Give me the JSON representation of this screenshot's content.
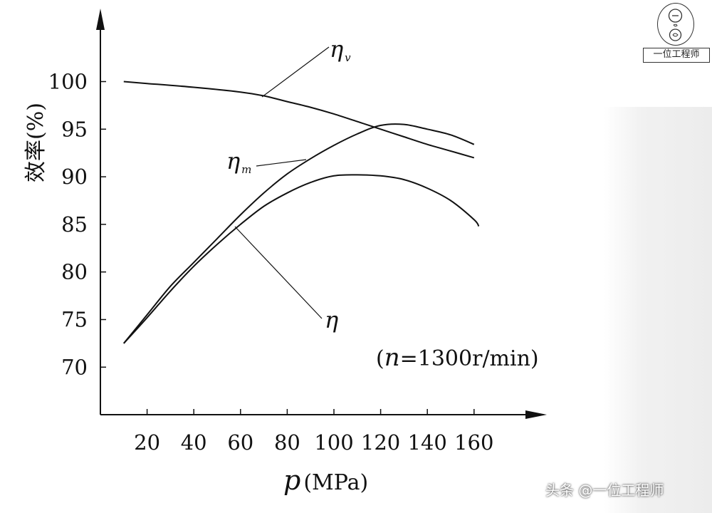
{
  "chart_data": {
    "type": "line",
    "title": "",
    "xlabel_var": "p",
    "xlabel_unit": "(MPa)",
    "ylabel": "效率(%)",
    "xlim": [
      0,
      180
    ],
    "ylim": [
      65,
      115
    ],
    "x_ticks": [
      20,
      40,
      60,
      80,
      100,
      120,
      140,
      160
    ],
    "y_ticks": [
      70,
      75,
      80,
      85,
      90,
      95,
      100
    ],
    "grid": false,
    "annotation": {
      "open": "(",
      "var": "n",
      "rest": "=1300r/min)"
    },
    "series": [
      {
        "name": "η",
        "sub": "v",
        "key": "eta_v",
        "x": [
          10,
          20,
          40,
          60,
          70,
          80,
          90,
          100,
          110,
          120,
          130,
          140,
          150,
          160
        ],
        "y": [
          100,
          99.8,
          99.4,
          98.9,
          98.5,
          97.9,
          97.3,
          96.6,
          95.8,
          95,
          94.2,
          93.4,
          92.7,
          92
        ]
      },
      {
        "name": "η",
        "sub": "m",
        "key": "eta_m",
        "x": [
          10,
          20,
          30,
          40,
          50,
          60,
          70,
          80,
          90,
          100,
          110,
          120,
          130,
          140,
          150,
          160
        ],
        "y": [
          72.5,
          75.5,
          78.5,
          81,
          83.5,
          86,
          88.3,
          90.3,
          91.9,
          93.3,
          94.5,
          95.4,
          95.5,
          95,
          94.4,
          93.4
        ]
      },
      {
        "name": "η",
        "sub": "",
        "key": "eta",
        "x": [
          10,
          20,
          30,
          40,
          50,
          60,
          70,
          80,
          90,
          100,
          110,
          120,
          130,
          140,
          150,
          160,
          162
        ],
        "y": [
          72.5,
          75.2,
          78,
          80.6,
          82.9,
          85,
          86.9,
          88.3,
          89.4,
          90.1,
          90.2,
          90.1,
          89.7,
          88.8,
          87.5,
          85.5,
          84.8
        ]
      }
    ]
  },
  "logo": {
    "text": "一位工程师"
  },
  "watermark": {
    "text": "头条 @一位工程师"
  }
}
